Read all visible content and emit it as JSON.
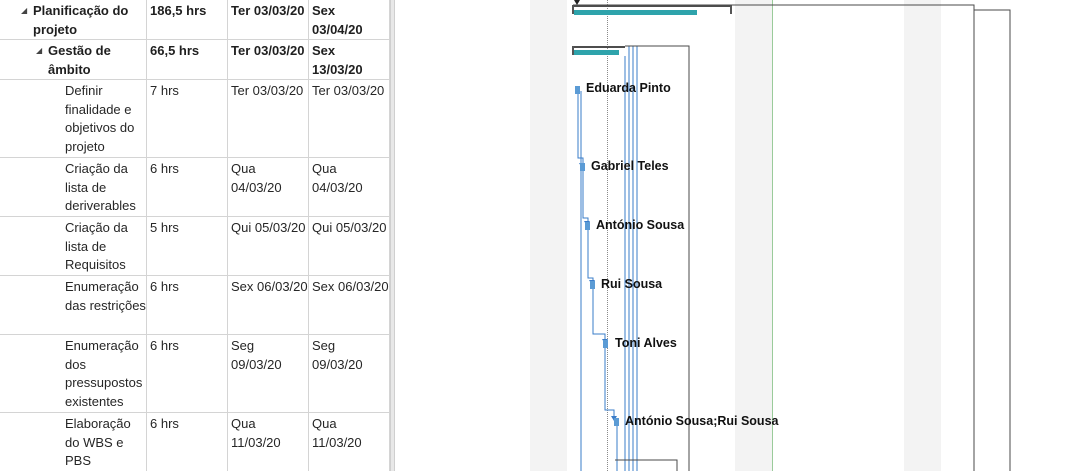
{
  "tasks": [
    {
      "name": "Planificação do projeto",
      "duration": "186,5 hrs",
      "start": "Ter 03/03/20",
      "finish": "Sex 03/04/20",
      "summary": true,
      "level": 0
    },
    {
      "name": "Gestão de âmbito",
      "duration": "66,5 hrs",
      "start": "Ter 03/03/20",
      "finish": "Sex 13/03/20",
      "summary": true,
      "level": 1
    },
    {
      "name": "Definir finalidade e objetivos do projeto",
      "duration": "7 hrs",
      "start": "Ter 03/03/20",
      "finish": "Ter 03/03/20",
      "summary": false,
      "level": 2,
      "resource": "Eduarda Pinto"
    },
    {
      "name": "Criação da lista de deriverables",
      "duration": "6 hrs",
      "start": "Qua 04/03/20",
      "finish": "Qua 04/03/20",
      "summary": false,
      "level": 2,
      "resource": "Gabriel Teles"
    },
    {
      "name": "Criação da lista de Requisitos",
      "duration": "5 hrs",
      "start": "Qui 05/03/20",
      "finish": "Qui 05/03/20",
      "summary": false,
      "level": 2,
      "resource": "António Sousa"
    },
    {
      "name": "Enumeração das restrições",
      "duration": "6 hrs",
      "start": "Sex 06/03/20",
      "finish": "Sex 06/03/20",
      "summary": false,
      "level": 2,
      "resource": "Rui Sousa"
    },
    {
      "name": "Enumeração dos pressupostos existentes",
      "duration": "6 hrs",
      "start": "Seg 09/03/20",
      "finish": "Seg 09/03/20",
      "summary": false,
      "level": 2,
      "resource": "Toni Alves"
    },
    {
      "name": "Elaboração do WBS e PBS",
      "duration": "6 hrs",
      "start": "Qua 11/03/20",
      "finish": "Qua 11/03/20",
      "summary": false,
      "level": 2,
      "resource": "António Sousa;Rui Sousa"
    }
  ],
  "colors": {
    "summary_bar": "#2ea3ab",
    "task_bar": "#5b9bd5",
    "link": "#3a7cc9",
    "weekend_band": "#f3f3f3",
    "today_line": "#9acb9a"
  }
}
